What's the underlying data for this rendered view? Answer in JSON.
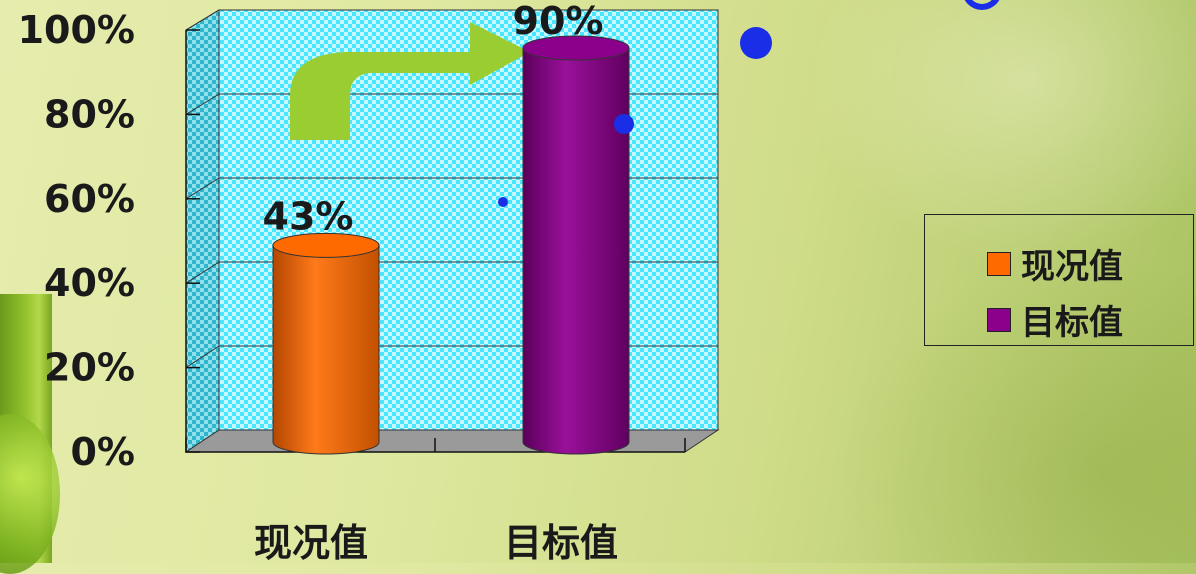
{
  "chart_data": {
    "type": "bar",
    "style": "3d-cylinder",
    "categories": [
      "现况值",
      "目标值"
    ],
    "values": [
      43,
      90
    ],
    "data_labels": [
      "43%",
      "90%"
    ],
    "ylim": [
      0,
      100
    ],
    "yticks": [
      "0%",
      "20%",
      "40%",
      "60%",
      "80%",
      "100%"
    ],
    "grid": true,
    "legend_position": "right",
    "colors": [
      "#ff6a00",
      "#8b008b"
    ],
    "wall_color": "#48e6ff",
    "floor_color": "#9a9a9a",
    "arrow_color": "#9acd32",
    "legend": [
      {
        "label": "现况值",
        "color": "#ff6a00"
      },
      {
        "label": "目标值",
        "color": "#8b008b"
      }
    ]
  }
}
